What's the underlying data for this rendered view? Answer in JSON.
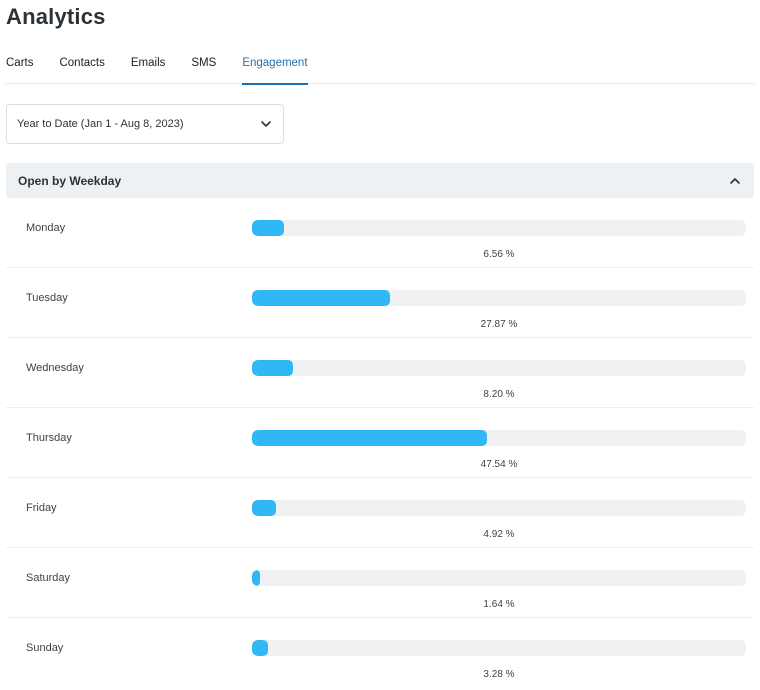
{
  "page": {
    "title": "Analytics"
  },
  "tabs": [
    {
      "label": "Carts",
      "active": false
    },
    {
      "label": "Contacts",
      "active": false
    },
    {
      "label": "Emails",
      "active": false
    },
    {
      "label": "SMS",
      "active": false
    },
    {
      "label": "Engagement",
      "active": true
    }
  ],
  "date_range": {
    "value": "Year to Date (Jan 1 - Aug 8, 2023)",
    "icon": "chevron-down-icon"
  },
  "panel": {
    "title": "Open by Weekday",
    "icon": "chevron-up-icon",
    "rows": [
      {
        "day": "Monday",
        "value": 6.56,
        "label": "6.56 %"
      },
      {
        "day": "Tuesday",
        "value": 27.87,
        "label": "27.87 %"
      },
      {
        "day": "Wednesday",
        "value": 8.2,
        "label": "8.20 %"
      },
      {
        "day": "Thursday",
        "value": 47.54,
        "label": "47.54 %"
      },
      {
        "day": "Friday",
        "value": 4.92,
        "label": "4.92 %"
      },
      {
        "day": "Saturday",
        "value": 1.64,
        "label": "1.64 %"
      },
      {
        "day": "Sunday",
        "value": 3.28,
        "label": "3.28 %"
      }
    ]
  },
  "colors": {
    "bar": "#2fb8f5",
    "track": "#f0f1f2",
    "accent": "#1e6fb0"
  }
}
